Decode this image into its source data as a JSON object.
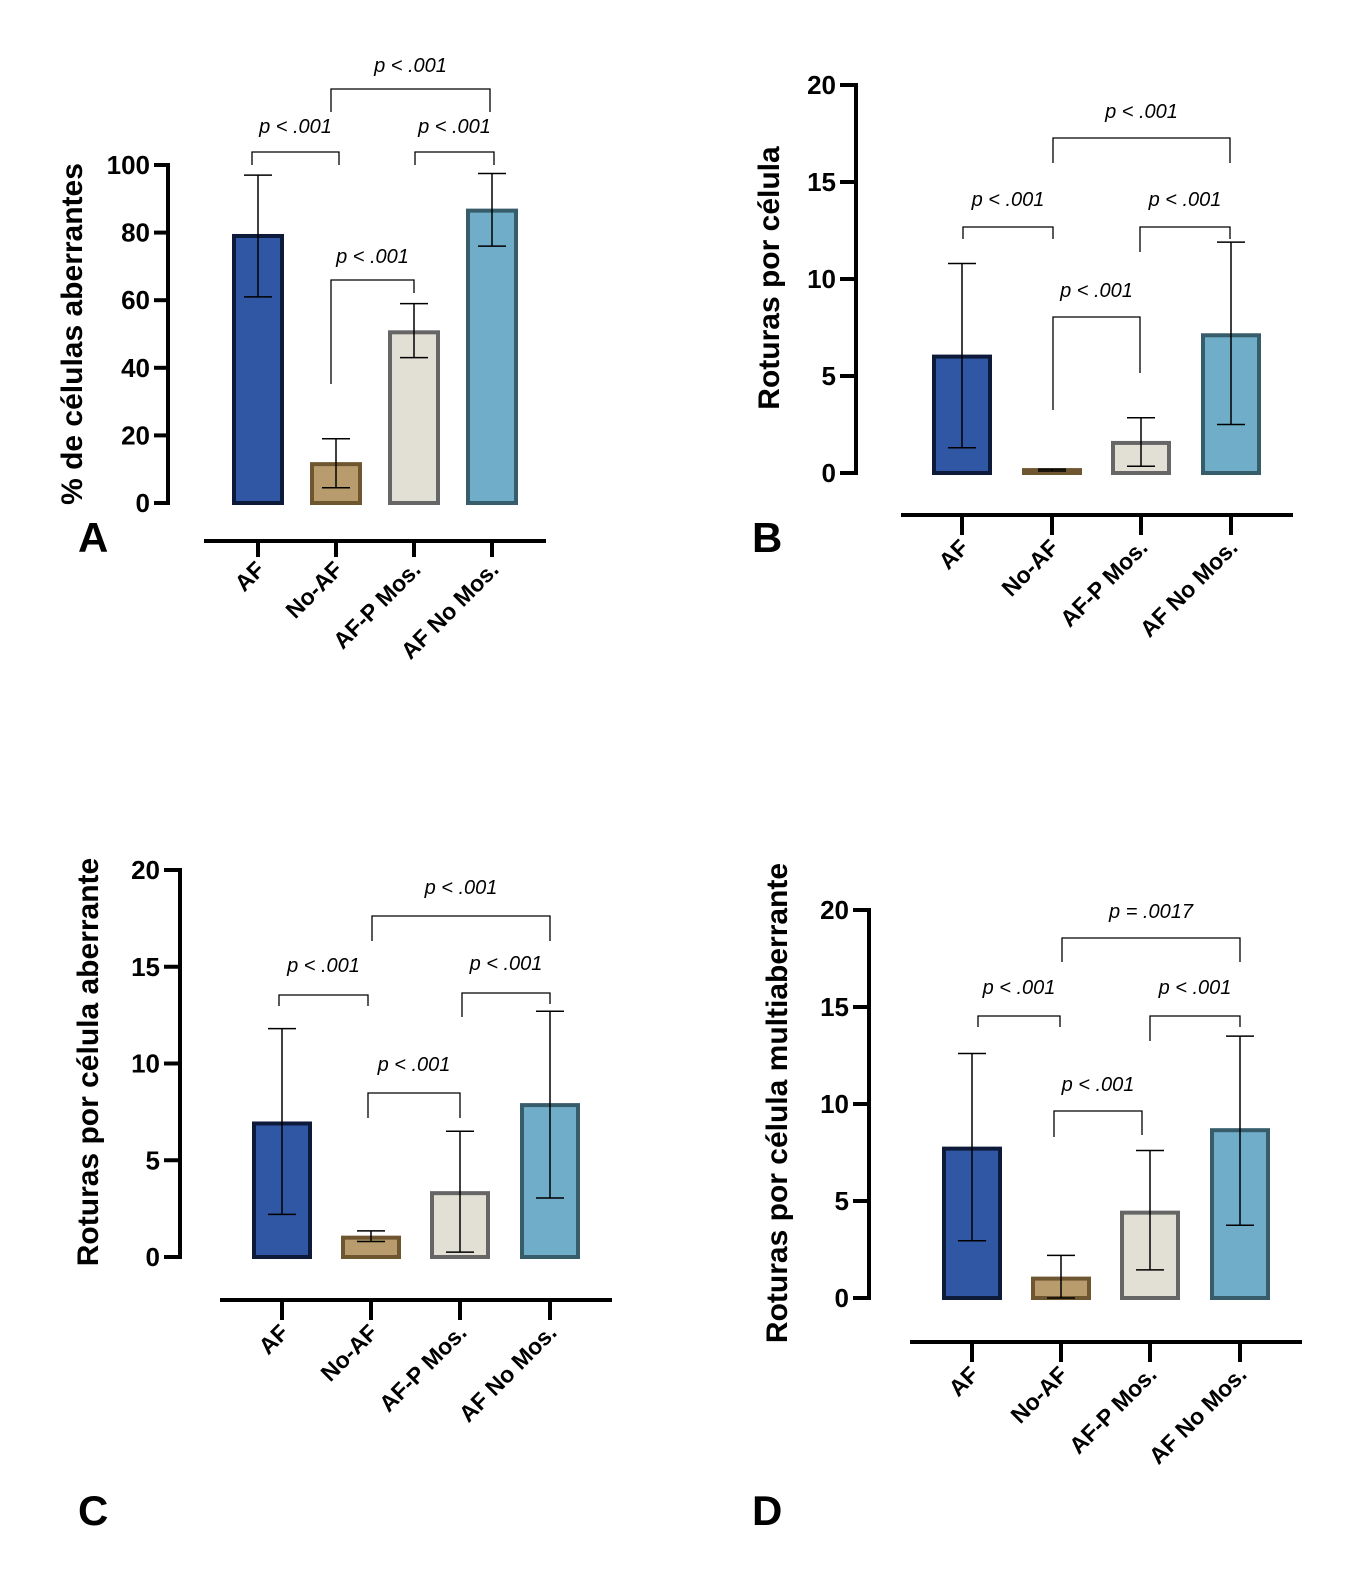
{
  "chart_data": [
    {
      "type": "bar",
      "panel": "A",
      "title": "",
      "xlabel": "",
      "ylabel": "% de células aberrantes",
      "ylim": [
        0,
        100
      ],
      "yticks": [
        "0",
        "20",
        "40",
        "60",
        "80",
        "100"
      ],
      "categories": [
        "AF",
        "No-AF",
        "AF-P Mos.",
        "AF No Mos."
      ],
      "values": [
        79,
        11.5,
        50.5,
        86.5
      ],
      "error_low": [
        61,
        4.5,
        43,
        76
      ],
      "error_high": [
        97,
        19,
        59,
        97.5
      ],
      "comparisons": [
        {
          "from": "AF",
          "to": "No-AF",
          "label": "p < .001"
        },
        {
          "from": "No-AF",
          "to": "AF-P Mos.",
          "label": "p < .001"
        },
        {
          "from": "AF-P Mos.",
          "to": "AF No Mos.",
          "label": "p < .001"
        },
        {
          "from": "No-AF",
          "to": "AF No Mos.",
          "label": "p < .001"
        }
      ],
      "grid": false
    },
    {
      "type": "bar",
      "panel": "B",
      "title": "",
      "xlabel": "",
      "ylabel": "Roturas por célula",
      "ylim": [
        0,
        20
      ],
      "yticks": [
        "0",
        "5",
        "10",
        "15",
        "20"
      ],
      "categories": [
        "AF",
        "No-AF",
        "AF-P Mos.",
        "AF No Mos."
      ],
      "values": [
        6.0,
        0.15,
        1.55,
        7.1
      ],
      "error_low": [
        1.3,
        0.1,
        0.35,
        2.5
      ],
      "error_high": [
        10.8,
        0.2,
        2.85,
        11.9
      ],
      "comparisons": [
        {
          "from": "AF",
          "to": "No-AF",
          "label": "p < .001"
        },
        {
          "from": "No-AF",
          "to": "AF-P Mos.",
          "label": "p < .001"
        },
        {
          "from": "AF-P Mos.",
          "to": "AF No Mos.",
          "label": "p < .001"
        },
        {
          "from": "No-AF",
          "to": "AF No Mos.",
          "label": "p < .001"
        }
      ],
      "grid": false
    },
    {
      "type": "bar",
      "panel": "C",
      "title": "",
      "xlabel": "",
      "ylabel": "Roturas por célula aberrante",
      "ylim": [
        0,
        20
      ],
      "yticks": [
        "0",
        "5",
        "10",
        "15",
        "20"
      ],
      "categories": [
        "AF",
        "No-AF",
        "AF-P Mos.",
        "AF No Mos."
      ],
      "values": [
        6.9,
        1.0,
        3.3,
        7.85
      ],
      "error_low": [
        2.2,
        0.8,
        0.25,
        3.05
      ],
      "error_high": [
        11.8,
        1.35,
        6.5,
        12.7
      ],
      "comparisons": [
        {
          "from": "AF",
          "to": "No-AF",
          "label": "p < .001"
        },
        {
          "from": "No-AF",
          "to": "AF-P Mos.",
          "label": "p < .001"
        },
        {
          "from": "AF-P Mos.",
          "to": "AF No Mos.",
          "label": "p < .001"
        },
        {
          "from": "No-AF",
          "to": "AF No Mos.",
          "label": "p < .001"
        }
      ],
      "grid": false
    },
    {
      "type": "bar",
      "panel": "D",
      "title": "",
      "xlabel": "",
      "ylabel": "Roturas por célula multiaberrante",
      "ylim": [
        0,
        20
      ],
      "yticks": [
        "0",
        "5",
        "10",
        "15",
        "20"
      ],
      "categories": [
        "AF",
        "No-AF",
        "AF-P Mos.",
        "AF No Mos."
      ],
      "values": [
        7.7,
        1.0,
        4.4,
        8.65
      ],
      "error_low": [
        2.95,
        0.0,
        1.45,
        3.75
      ],
      "error_high": [
        12.6,
        2.2,
        7.6,
        13.5
      ],
      "comparisons": [
        {
          "from": "AF",
          "to": "No-AF",
          "label": "p < .001"
        },
        {
          "from": "No-AF",
          "to": "AF-P Mos.",
          "label": "p < .001"
        },
        {
          "from": "AF-P Mos.",
          "to": "AF No Mos.",
          "label": "p < .001"
        },
        {
          "from": "No-AF",
          "to": "AF No Mos.",
          "label": "p = .0017"
        }
      ],
      "grid": false
    }
  ],
  "series_colors": {
    "fill": [
      "#3057a3",
      "#b89c6e",
      "#e2dfd5",
      "#70adc9"
    ],
    "stroke": [
      "#0d1a3a",
      "#6e5630",
      "#666666",
      "#375c6a"
    ]
  }
}
